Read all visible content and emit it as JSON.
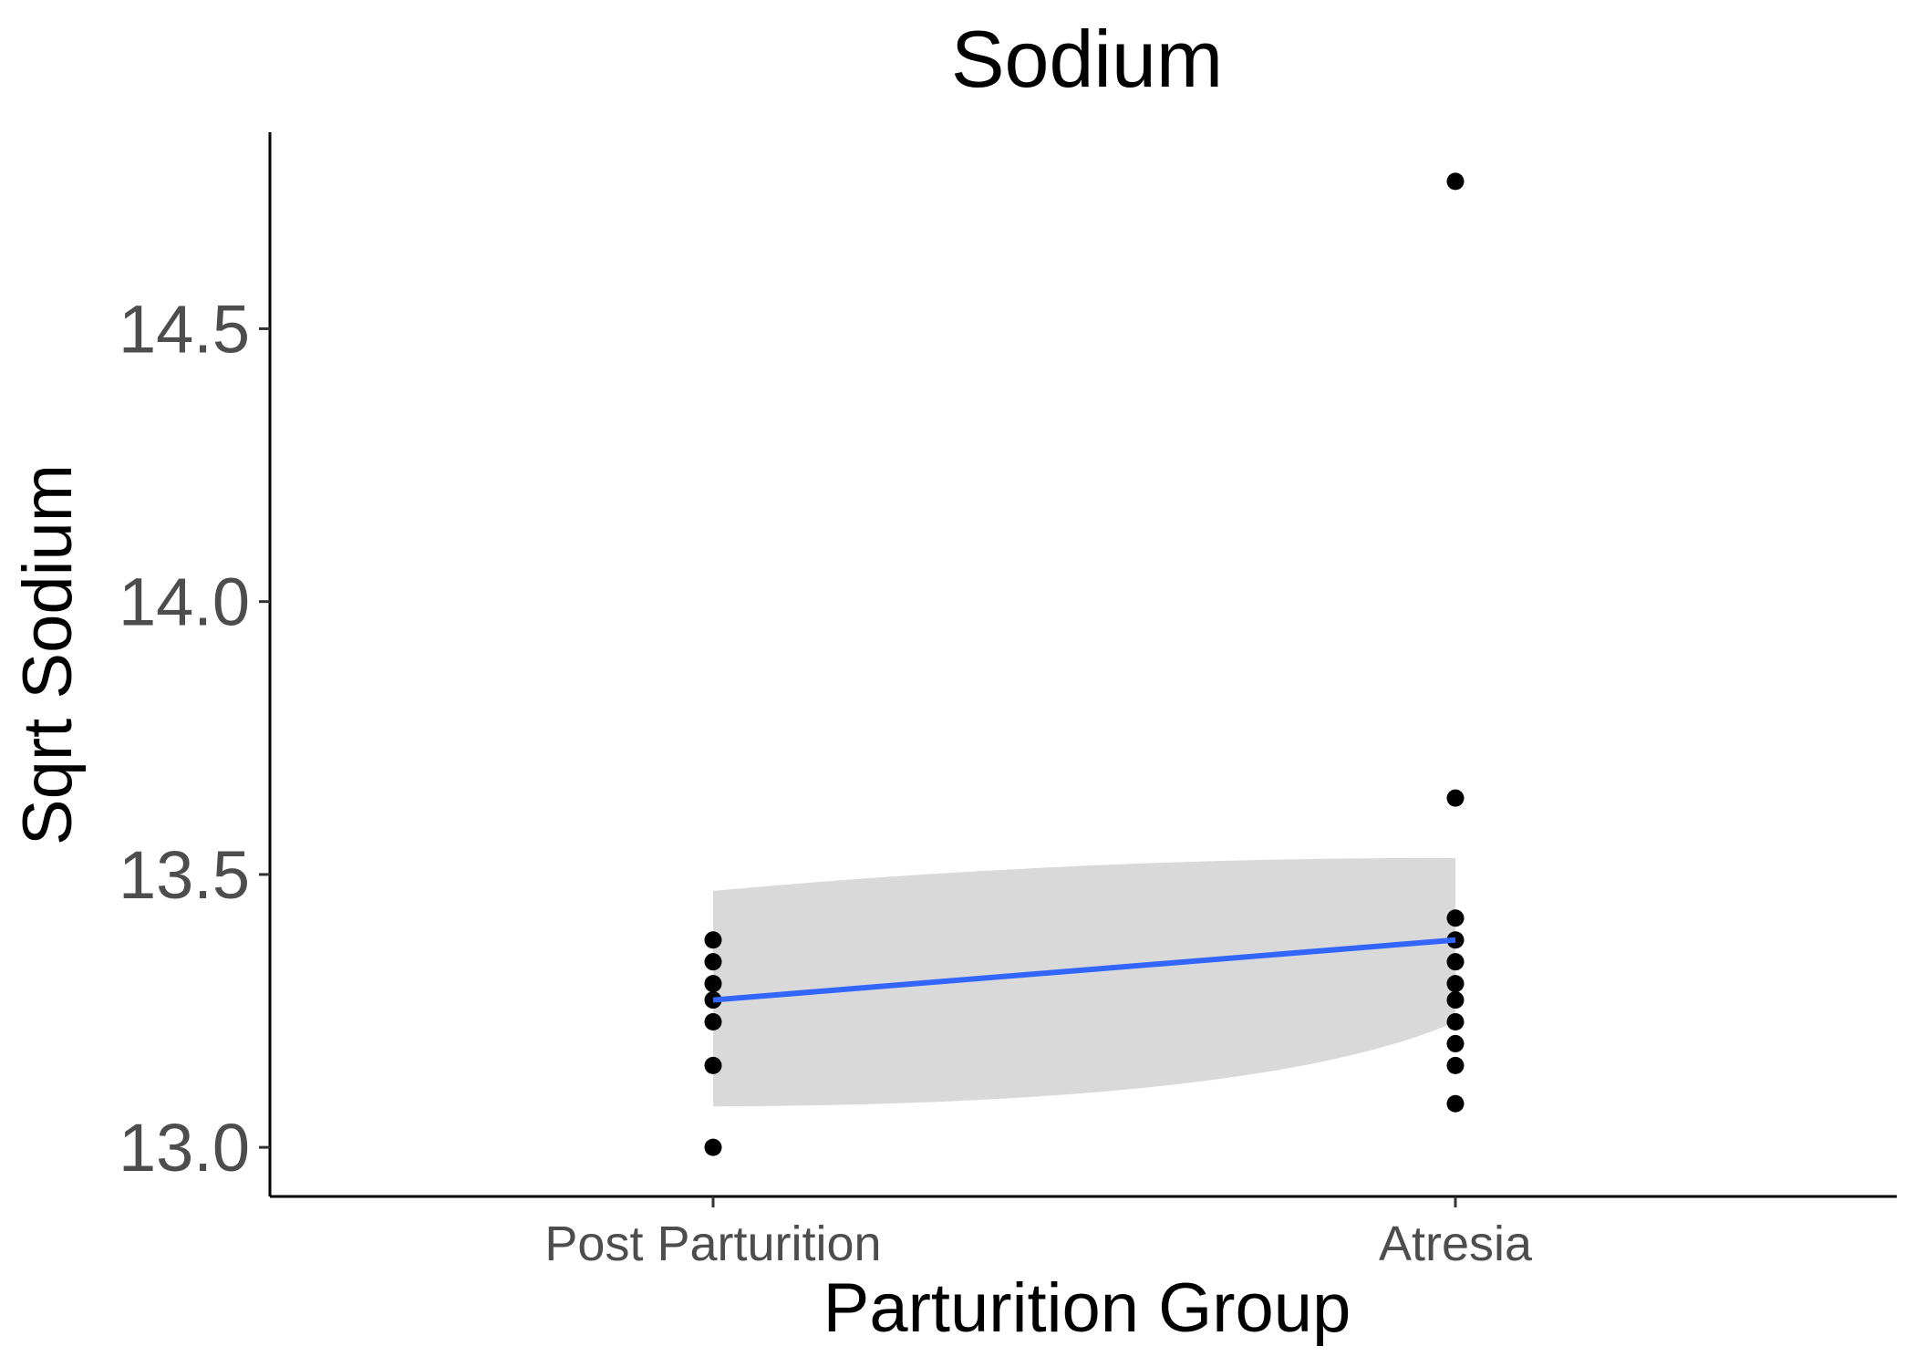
{
  "chart_data": {
    "type": "scatter",
    "title": "Sodium",
    "xlabel": "Parturition Group",
    "ylabel": "Sqrt Sodium",
    "categories": [
      "Post Parturition",
      "Atresia"
    ],
    "ylim": [
      12.91,
      14.86
    ],
    "yticks": [
      13.0,
      13.5,
      14.0,
      14.5
    ],
    "ytick_labels": [
      "13.0",
      "13.5",
      "14.0",
      "14.5"
    ],
    "grid": false,
    "points": [
      {
        "category": "Post Parturition",
        "values": [
          13.0,
          13.15,
          13.23,
          13.27,
          13.3,
          13.34,
          13.38
        ]
      },
      {
        "category": "Atresia",
        "values": [
          13.08,
          13.15,
          13.19,
          13.23,
          13.27,
          13.3,
          13.34,
          13.38,
          13.42,
          13.64,
          14.77
        ]
      }
    ],
    "smooth": {
      "method": "lm",
      "fit": [
        13.27,
        13.38
      ],
      "ci_lower": [
        13.075,
        13.23
      ],
      "ci_upper": [
        13.47,
        13.53
      ],
      "line_color": "#3366FF",
      "ribbon_color": "#d9d9d9"
    },
    "point_color": "#000000"
  }
}
